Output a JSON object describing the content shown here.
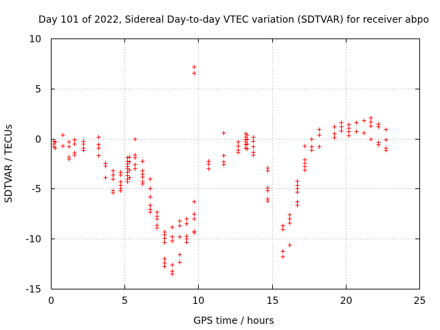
{
  "chart_data": {
    "type": "scatter",
    "title": "Day 101 of 2022, Sidereal Day-to-day VTEC variation (SDTVAR) for receiver abpo",
    "xlabel": "GPS time / hours",
    "ylabel": "SDTVAR / TECUs",
    "xlim": [
      0,
      25
    ],
    "ylim": [
      -15,
      10
    ],
    "xticks": [
      0,
      5,
      10,
      15,
      20,
      25
    ],
    "yticks": [
      -15,
      -10,
      -5,
      0,
      5,
      10
    ],
    "xtick_labels": [
      "0",
      "5",
      "10",
      "15",
      "20",
      "25"
    ],
    "ytick_labels": [
      "-15",
      "-10",
      "-5",
      "0",
      "5",
      "10"
    ],
    "grid": true,
    "marker": "plus",
    "color": "#ff0000",
    "series": [
      {
        "name": "SDTVAR",
        "points": [
          [
            0.2,
            -0.2
          ],
          [
            0.2,
            -0.5
          ],
          [
            0.2,
            -0.8
          ],
          [
            0.3,
            -0.3
          ],
          [
            0.3,
            -0.9
          ],
          [
            0.8,
            0.4
          ],
          [
            0.8,
            -0.7
          ],
          [
            1.2,
            -0.3
          ],
          [
            1.2,
            -0.8
          ],
          [
            1.2,
            -1.8
          ],
          [
            1.2,
            -2.0
          ],
          [
            1.6,
            -0.1
          ],
          [
            1.6,
            -0.5
          ],
          [
            1.6,
            -1.4
          ],
          [
            1.6,
            -1.6
          ],
          [
            2.2,
            -0.2
          ],
          [
            2.2,
            -0.5
          ],
          [
            2.2,
            -0.9
          ],
          [
            2.2,
            -1.1
          ],
          [
            3.2,
            0.2
          ],
          [
            3.2,
            -0.6
          ],
          [
            3.2,
            -0.9
          ],
          [
            3.2,
            -1.7
          ],
          [
            3.7,
            -2.4
          ],
          [
            3.7,
            -2.7
          ],
          [
            3.7,
            -3.9
          ],
          [
            4.2,
            -3.2
          ],
          [
            4.2,
            -3.6
          ],
          [
            4.2,
            -4.0
          ],
          [
            4.2,
            -5.2
          ],
          [
            4.2,
            -5.4
          ],
          [
            4.7,
            -3.3
          ],
          [
            4.7,
            -3.6
          ],
          [
            4.7,
            -4.3
          ],
          [
            4.7,
            -4.6
          ],
          [
            4.7,
            -5.0
          ],
          [
            4.7,
            -5.2
          ],
          [
            5.2,
            -1.9
          ],
          [
            5.2,
            -2.2
          ],
          [
            5.2,
            -2.5
          ],
          [
            5.2,
            -2.8
          ],
          [
            5.2,
            -3.0
          ],
          [
            5.2,
            -3.3
          ],
          [
            5.2,
            -3.7
          ],
          [
            5.2,
            -4.0
          ],
          [
            5.2,
            -4.3
          ],
          [
            5.3,
            -1.8
          ],
          [
            5.3,
            -2.3
          ],
          [
            5.3,
            -3.1
          ],
          [
            5.3,
            -3.9
          ],
          [
            5.7,
            0.0
          ],
          [
            5.7,
            -1.6
          ],
          [
            5.7,
            -1.9
          ],
          [
            5.7,
            -2.6
          ],
          [
            5.7,
            -3.0
          ],
          [
            6.2,
            -2.2
          ],
          [
            6.2,
            -3.2
          ],
          [
            6.2,
            -3.5
          ],
          [
            6.2,
            -3.8
          ],
          [
            6.2,
            -4.3
          ],
          [
            6.2,
            -4.5
          ],
          [
            6.7,
            -4.0
          ],
          [
            6.7,
            -5.0
          ],
          [
            6.7,
            -5.8
          ],
          [
            6.7,
            -6.6
          ],
          [
            6.7,
            -7.0
          ],
          [
            6.7,
            -7.3
          ],
          [
            7.2,
            -7.3
          ],
          [
            7.2,
            -7.7
          ],
          [
            7.2,
            -8.0
          ],
          [
            7.2,
            -8.6
          ],
          [
            7.2,
            -8.9
          ],
          [
            7.7,
            -9.3
          ],
          [
            7.7,
            -9.6
          ],
          [
            7.7,
            -9.9
          ],
          [
            7.7,
            -10.3
          ],
          [
            7.7,
            -12.0
          ],
          [
            7.7,
            -12.4
          ],
          [
            7.7,
            -12.7
          ],
          [
            8.2,
            -9.8
          ],
          [
            8.2,
            -10.2
          ],
          [
            8.2,
            -12.6
          ],
          [
            8.2,
            -13.2
          ],
          [
            8.2,
            -13.5
          ],
          [
            8.2,
            -8.8
          ],
          [
            8.7,
            -8.2
          ],
          [
            8.7,
            -8.7
          ],
          [
            8.7,
            -9.8
          ],
          [
            8.7,
            -11.6
          ],
          [
            8.7,
            -12.3
          ],
          [
            9.2,
            -8.0
          ],
          [
            9.2,
            -8.5
          ],
          [
            9.2,
            -9.7
          ],
          [
            9.2,
            -10.0
          ],
          [
            9.2,
            -10.3
          ],
          [
            9.7,
            7.2
          ],
          [
            9.7,
            6.6
          ],
          [
            9.7,
            -6.3
          ],
          [
            9.7,
            -7.5
          ],
          [
            9.7,
            -8.0
          ],
          [
            9.7,
            -9.2
          ],
          [
            9.7,
            -9.4
          ],
          [
            10.7,
            -2.2
          ],
          [
            10.7,
            -2.5
          ],
          [
            10.7,
            -3.0
          ],
          [
            11.7,
            0.6
          ],
          [
            11.7,
            -1.7
          ],
          [
            11.7,
            -2.3
          ],
          [
            11.7,
            -2.6
          ],
          [
            12.7,
            -0.3
          ],
          [
            12.7,
            -0.7
          ],
          [
            12.7,
            -1.1
          ],
          [
            12.7,
            -1.3
          ],
          [
            13.2,
            0.5
          ],
          [
            13.2,
            0.2
          ],
          [
            13.2,
            -0.1
          ],
          [
            13.2,
            -0.3
          ],
          [
            13.2,
            -0.6
          ],
          [
            13.2,
            -0.9
          ],
          [
            13.3,
            0.4
          ],
          [
            13.3,
            0.0
          ],
          [
            13.3,
            -0.5
          ],
          [
            13.3,
            -1.0
          ],
          [
            13.7,
            0.2
          ],
          [
            13.7,
            -0.2
          ],
          [
            13.7,
            -0.8
          ],
          [
            13.7,
            -1.3
          ],
          [
            13.7,
            -1.6
          ],
          [
            14.7,
            -2.9
          ],
          [
            14.7,
            -3.2
          ],
          [
            14.7,
            -4.9
          ],
          [
            14.7,
            -5.2
          ],
          [
            14.7,
            -6.0
          ],
          [
            14.7,
            -6.2
          ],
          [
            15.7,
            -8.7
          ],
          [
            15.7,
            -9.0
          ],
          [
            15.7,
            -11.2
          ],
          [
            15.7,
            -11.8
          ],
          [
            16.2,
            -7.6
          ],
          [
            16.2,
            -8.0
          ],
          [
            16.2,
            -8.4
          ],
          [
            16.2,
            -10.6
          ],
          [
            16.7,
            -4.2
          ],
          [
            16.7,
            -4.6
          ],
          [
            16.7,
            -5.0
          ],
          [
            16.7,
            -5.3
          ],
          [
            16.7,
            -6.3
          ],
          [
            16.7,
            -6.6
          ],
          [
            17.2,
            -0.7
          ],
          [
            17.2,
            -2.1
          ],
          [
            17.2,
            -2.4
          ],
          [
            17.2,
            -2.8
          ],
          [
            17.2,
            -3.1
          ],
          [
            17.7,
            0.0
          ],
          [
            17.7,
            -0.8
          ],
          [
            17.7,
            -1.1
          ],
          [
            18.2,
            0.9
          ],
          [
            18.2,
            0.4
          ],
          [
            18.2,
            -0.8
          ],
          [
            19.2,
            1.2
          ],
          [
            19.2,
            0.5
          ],
          [
            19.2,
            0.1
          ],
          [
            19.7,
            1.6
          ],
          [
            19.7,
            1.2
          ],
          [
            19.7,
            0.8
          ],
          [
            20.2,
            1.4
          ],
          [
            20.2,
            1.1
          ],
          [
            20.2,
            0.7
          ],
          [
            20.2,
            0.3
          ],
          [
            20.7,
            1.6
          ],
          [
            20.7,
            0.7
          ],
          [
            21.2,
            1.8
          ],
          [
            21.2,
            0.6
          ],
          [
            21.7,
            2.1
          ],
          [
            21.7,
            1.7
          ],
          [
            21.7,
            1.3
          ],
          [
            21.7,
            0.0
          ],
          [
            22.2,
            1.5
          ],
          [
            22.2,
            1.2
          ],
          [
            22.2,
            -0.4
          ],
          [
            22.2,
            -0.6
          ],
          [
            22.7,
            0.9
          ],
          [
            22.7,
            -0.1
          ],
          [
            22.7,
            -0.9
          ],
          [
            22.7,
            -1.1
          ]
        ]
      }
    ]
  }
}
